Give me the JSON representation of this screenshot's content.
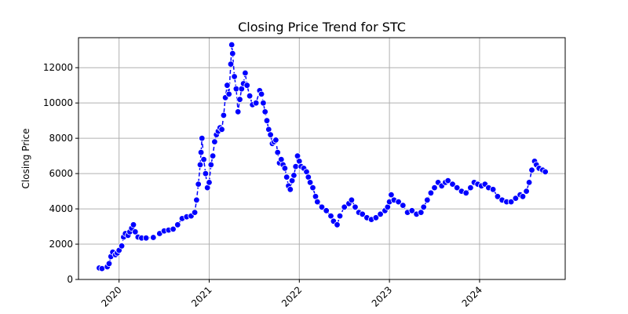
{
  "chart_data": {
    "type": "line",
    "title": "Closing Price Trend for STC",
    "xlabel": "",
    "ylabel": "Closing Price",
    "grid": true,
    "line_color": "#0000ff",
    "marker_color": "#0000ff",
    "marker_edge": "#ffffff",
    "x_ticks": [
      "2020",
      "2021",
      "2022",
      "2023",
      "2024"
    ],
    "y_ticks": [
      0,
      2000,
      4000,
      6000,
      8000,
      10000,
      12000
    ],
    "ylim": [
      0,
      13700
    ],
    "xlim": [
      2019.55,
      2024.95
    ],
    "series": [
      {
        "points": [
          [
            2019.78,
            650
          ],
          [
            2019.81,
            620
          ],
          [
            2019.87,
            720
          ],
          [
            2019.89,
            900
          ],
          [
            2019.91,
            1300
          ],
          [
            2019.93,
            1550
          ],
          [
            2019.96,
            1400
          ],
          [
            2019.98,
            1500
          ],
          [
            2020.0,
            1650
          ],
          [
            2020.03,
            1900
          ],
          [
            2020.05,
            2400
          ],
          [
            2020.07,
            2600
          ],
          [
            2020.1,
            2500
          ],
          [
            2020.12,
            2700
          ],
          [
            2020.14,
            2900
          ],
          [
            2020.16,
            3100
          ],
          [
            2020.18,
            2700
          ],
          [
            2020.21,
            2400
          ],
          [
            2020.25,
            2350
          ],
          [
            2020.3,
            2350
          ],
          [
            2020.38,
            2380
          ],
          [
            2020.45,
            2600
          ],
          [
            2020.5,
            2750
          ],
          [
            2020.55,
            2800
          ],
          [
            2020.6,
            2850
          ],
          [
            2020.65,
            3100
          ],
          [
            2020.7,
            3450
          ],
          [
            2020.75,
            3550
          ],
          [
            2020.8,
            3600
          ],
          [
            2020.84,
            3800
          ],
          [
            2020.86,
            4500
          ],
          [
            2020.88,
            5400
          ],
          [
            2020.9,
            6500
          ],
          [
            2020.91,
            7200
          ],
          [
            2020.92,
            8000
          ],
          [
            2020.94,
            6800
          ],
          [
            2020.96,
            6000
          ],
          [
            2020.98,
            5200
          ],
          [
            2021.0,
            5500
          ],
          [
            2021.02,
            6500
          ],
          [
            2021.04,
            7000
          ],
          [
            2021.06,
            7800
          ],
          [
            2021.08,
            8200
          ],
          [
            2021.1,
            8400
          ],
          [
            2021.12,
            8600
          ],
          [
            2021.14,
            8500
          ],
          [
            2021.16,
            9300
          ],
          [
            2021.18,
            10300
          ],
          [
            2021.2,
            11000
          ],
          [
            2021.22,
            10500
          ],
          [
            2021.24,
            12200
          ],
          [
            2021.25,
            13300
          ],
          [
            2021.26,
            12800
          ],
          [
            2021.28,
            11500
          ],
          [
            2021.3,
            10800
          ],
          [
            2021.32,
            9500
          ],
          [
            2021.34,
            10200
          ],
          [
            2021.36,
            10800
          ],
          [
            2021.38,
            11100
          ],
          [
            2021.4,
            11700
          ],
          [
            2021.42,
            11000
          ],
          [
            2021.45,
            10400
          ],
          [
            2021.48,
            9900
          ],
          [
            2021.52,
            10000
          ],
          [
            2021.56,
            10700
          ],
          [
            2021.58,
            10500
          ],
          [
            2021.6,
            10000
          ],
          [
            2021.62,
            9500
          ],
          [
            2021.64,
            9000
          ],
          [
            2021.66,
            8500
          ],
          [
            2021.68,
            8200
          ],
          [
            2021.7,
            7700
          ],
          [
            2021.72,
            7800
          ],
          [
            2021.74,
            7900
          ],
          [
            2021.76,
            7200
          ],
          [
            2021.78,
            6600
          ],
          [
            2021.8,
            6800
          ],
          [
            2021.82,
            6500
          ],
          [
            2021.84,
            6300
          ],
          [
            2021.86,
            5800
          ],
          [
            2021.88,
            5300
          ],
          [
            2021.9,
            5100
          ],
          [
            2021.92,
            5600
          ],
          [
            2021.94,
            5900
          ],
          [
            2021.96,
            6400
          ],
          [
            2021.98,
            7000
          ],
          [
            2022.0,
            6700
          ],
          [
            2022.02,
            6400
          ],
          [
            2022.05,
            6300
          ],
          [
            2022.08,
            6100
          ],
          [
            2022.1,
            5800
          ],
          [
            2022.12,
            5500
          ],
          [
            2022.15,
            5200
          ],
          [
            2022.18,
            4700
          ],
          [
            2022.2,
            4400
          ],
          [
            2022.25,
            4100
          ],
          [
            2022.3,
            3900
          ],
          [
            2022.35,
            3600
          ],
          [
            2022.38,
            3300
          ],
          [
            2022.42,
            3100
          ],
          [
            2022.45,
            3600
          ],
          [
            2022.5,
            4100
          ],
          [
            2022.55,
            4300
          ],
          [
            2022.58,
            4500
          ],
          [
            2022.62,
            4100
          ],
          [
            2022.66,
            3800
          ],
          [
            2022.7,
            3700
          ],
          [
            2022.75,
            3500
          ],
          [
            2022.8,
            3400
          ],
          [
            2022.85,
            3500
          ],
          [
            2022.9,
            3700
          ],
          [
            2022.95,
            3900
          ],
          [
            2022.98,
            4100
          ],
          [
            2023.0,
            4400
          ],
          [
            2023.02,
            4800
          ],
          [
            2023.05,
            4500
          ],
          [
            2023.1,
            4400
          ],
          [
            2023.15,
            4200
          ],
          [
            2023.2,
            3800
          ],
          [
            2023.25,
            3900
          ],
          [
            2023.3,
            3700
          ],
          [
            2023.35,
            3800
          ],
          [
            2023.38,
            4100
          ],
          [
            2023.42,
            4500
          ],
          [
            2023.46,
            4900
          ],
          [
            2023.5,
            5200
          ],
          [
            2023.54,
            5500
          ],
          [
            2023.58,
            5300
          ],
          [
            2023.62,
            5500
          ],
          [
            2023.65,
            5600
          ],
          [
            2023.7,
            5400
          ],
          [
            2023.75,
            5200
          ],
          [
            2023.8,
            5000
          ],
          [
            2023.85,
            4900
          ],
          [
            2023.9,
            5200
          ],
          [
            2023.94,
            5500
          ],
          [
            2023.98,
            5400
          ],
          [
            2024.02,
            5300
          ],
          [
            2024.06,
            5400
          ],
          [
            2024.1,
            5200
          ],
          [
            2024.15,
            5100
          ],
          [
            2024.2,
            4700
          ],
          [
            2024.25,
            4500
          ],
          [
            2024.3,
            4400
          ],
          [
            2024.35,
            4400
          ],
          [
            2024.4,
            4600
          ],
          [
            2024.45,
            4800
          ],
          [
            2024.48,
            4700
          ],
          [
            2024.52,
            5000
          ],
          [
            2024.55,
            5500
          ],
          [
            2024.58,
            6200
          ],
          [
            2024.61,
            6700
          ],
          [
            2024.63,
            6500
          ],
          [
            2024.66,
            6300
          ],
          [
            2024.7,
            6200
          ],
          [
            2024.73,
            6100
          ]
        ]
      }
    ]
  }
}
